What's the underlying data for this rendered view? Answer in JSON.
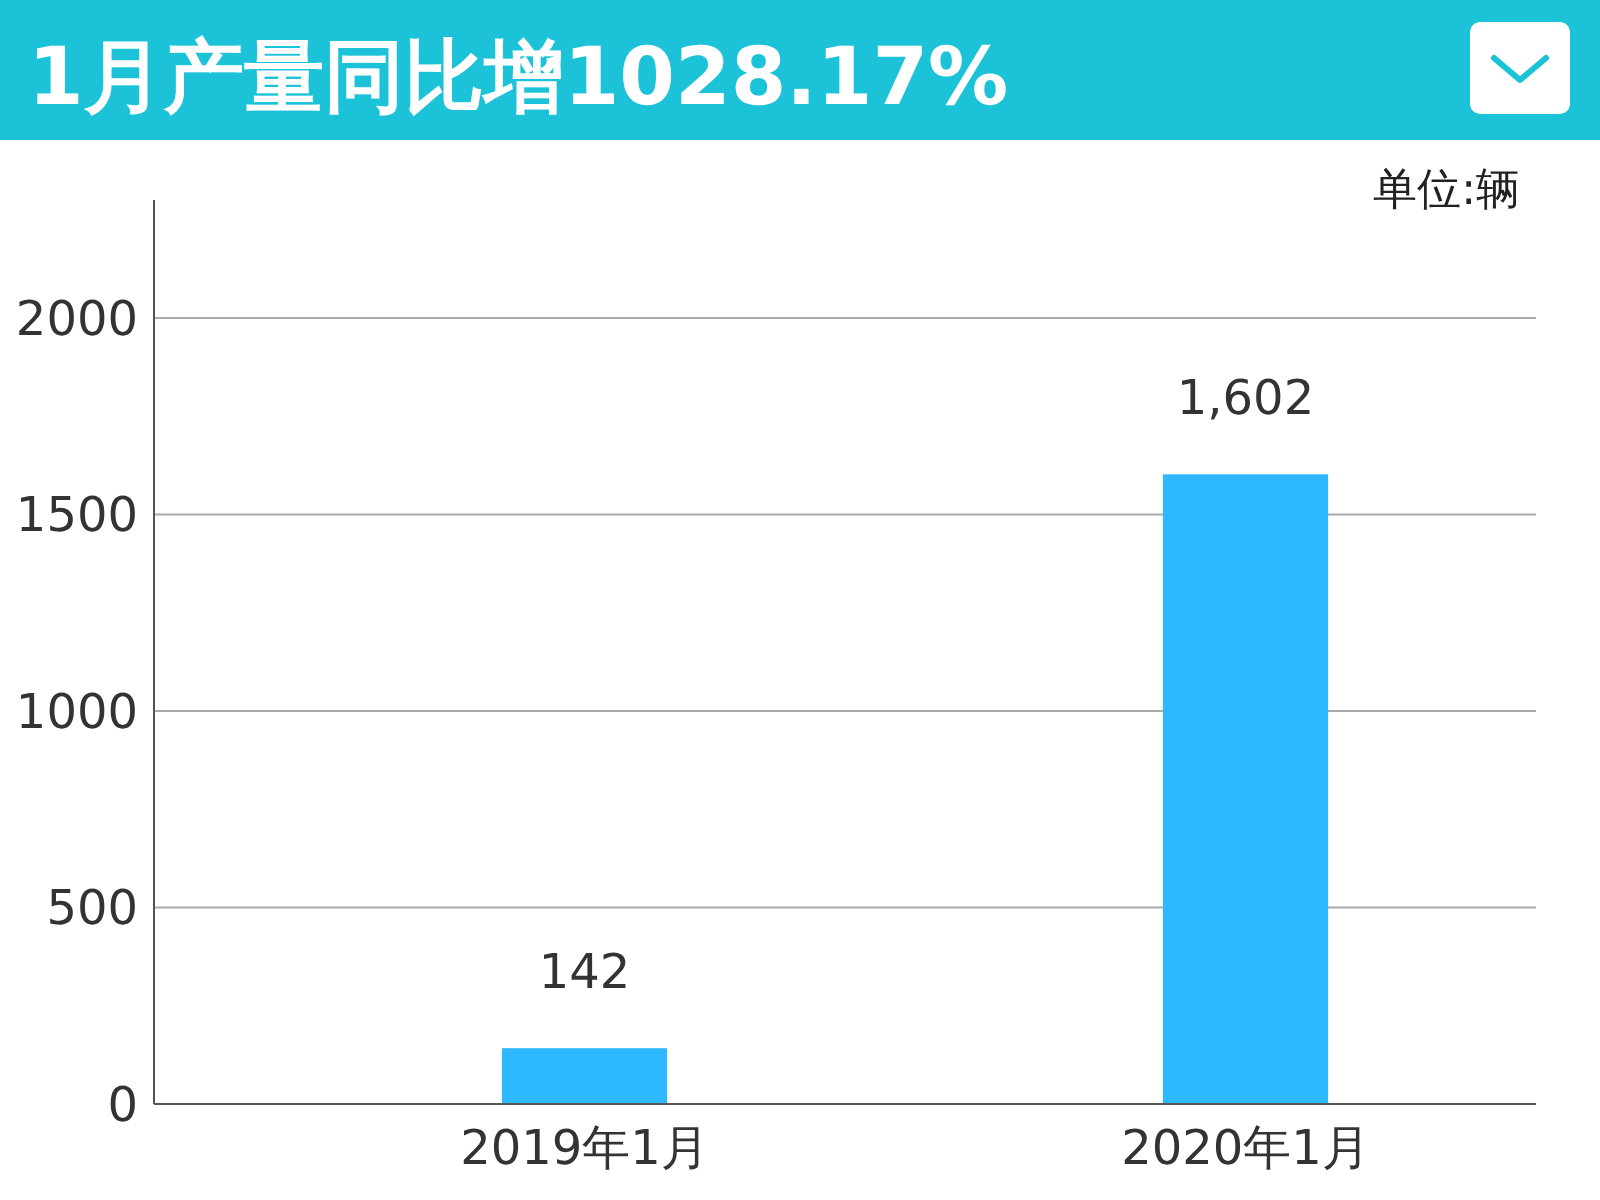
{
  "chart_data": {
    "type": "bar",
    "title": "1月产量同比增1028.17%",
    "annotations": [
      "单位:辆"
    ],
    "categories": [
      "2019年1月",
      "2020年1月"
    ],
    "values": [
      142,
      1602
    ],
    "value_labels": [
      "142",
      "1,602"
    ],
    "color": "#2eb8ff",
    "ylim": [
      0,
      2300
    ],
    "yticks": [
      0,
      500,
      1000,
      1500,
      2000
    ],
    "grid": "y"
  }
}
